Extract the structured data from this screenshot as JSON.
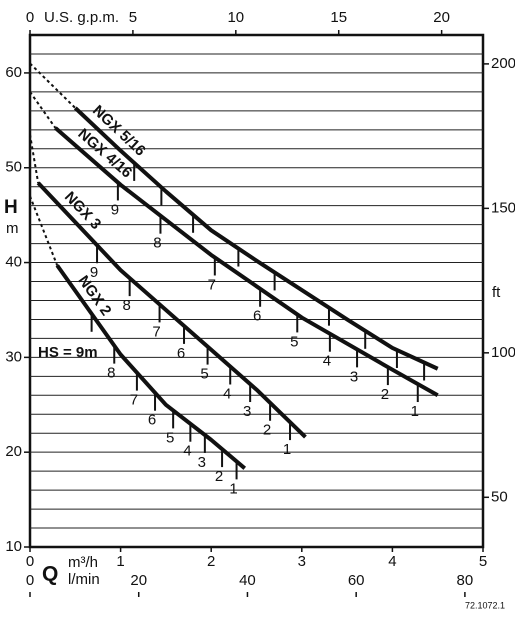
{
  "chart_data": {
    "type": "line",
    "x_label": "Q",
    "x_unit": "m³/h",
    "x2_unit": "l/min",
    "x3_label": "U.S. g.p.m.",
    "y_label": "H",
    "y_unit": "m",
    "y2_unit": "ft",
    "xlim": [
      0,
      5
    ],
    "xticks": [
      0,
      1,
      2,
      3,
      4,
      5
    ],
    "x2lim": [
      0,
      83.33
    ],
    "x2ticks": [
      0,
      20,
      40,
      60,
      80
    ],
    "x3lim": [
      0,
      22.01
    ],
    "x3ticks": [
      0,
      5,
      10,
      15,
      20
    ],
    "ylim": [
      10,
      64
    ],
    "yticks": [
      10,
      20,
      30,
      40,
      50,
      60
    ],
    "ygrid": [
      12,
      14,
      16,
      18,
      20,
      22,
      24,
      26,
      28,
      30,
      32,
      34,
      36,
      38,
      40,
      42,
      44,
      46,
      48,
      50,
      52,
      54,
      56,
      58,
      60,
      62
    ],
    "y2lim": [
      32.8,
      210
    ],
    "y2ticks": [
      50,
      100,
      150,
      200
    ],
    "hs_label": "HS = 9m",
    "figure_code": "72.1072.1",
    "series": [
      {
        "name": "NGX 5/16",
        "color": "#111111",
        "x": [
          0.5,
          1,
          1.5,
          2,
          2.5,
          3,
          3.5,
          4,
          4.5
        ],
        "values": [
          56.3,
          51.8,
          47.5,
          43.4,
          40.2,
          37.1,
          34,
          31,
          28.8
        ],
        "extrapolated": {
          "x": 0,
          "value": 61
        },
        "hs_marks": {
          "x": [
            1.15,
            1.45,
            1.8,
            2.3,
            2.7,
            3.3,
            3.7,
            4.05,
            4.35
          ]
        }
      },
      {
        "name": "NGX 4/16",
        "color": "#111111",
        "x": [
          0.28,
          1,
          2,
          3,
          4,
          4.5
        ],
        "values": [
          54.2,
          48.2,
          40.8,
          34.2,
          28.7,
          26
        ],
        "extrapolated": {
          "x": 0,
          "value": 58
        },
        "hs_marks": {
          "x": [
            0.97,
            1.44,
            2.04,
            2.54,
            2.95,
            3.31,
            3.61,
            3.95,
            4.28
          ],
          "labels": [
            "9",
            "8",
            "7",
            "6",
            "5",
            "4",
            "3",
            "2",
            "1"
          ]
        }
      },
      {
        "name": "NGX 3",
        "color": "#111111",
        "x": [
          0.09,
          1,
          2,
          2.5,
          3.04
        ],
        "values": [
          48.4,
          39.2,
          30.8,
          26.6,
          21.6
        ],
        "extrapolated": {
          "x": 0,
          "value": 53.5
        },
        "hs_marks": {
          "x": [
            0.74,
            1.1,
            1.43,
            1.7,
            1.96,
            2.21,
            2.43,
            2.65,
            2.87
          ],
          "labels": [
            "9",
            "8",
            "7",
            "6",
            "5",
            "4",
            "3",
            "2",
            "1"
          ]
        }
      },
      {
        "name": "NGX 2",
        "color": "#111111",
        "x": [
          0.3,
          1,
          1.5,
          2,
          2.37
        ],
        "values": [
          39.7,
          30.3,
          25,
          21.3,
          18.3
        ],
        "extrapolated": {
          "x": 0,
          "value": 47
        },
        "hs_marks": {
          "x": [
            0.68,
            0.93,
            1.18,
            1.38,
            1.58,
            1.77,
            1.93,
            2.12,
            2.28
          ],
          "labels": [
            "",
            "8",
            "7",
            "6",
            "5",
            "4",
            "3",
            "2",
            "1"
          ]
        }
      }
    ]
  }
}
